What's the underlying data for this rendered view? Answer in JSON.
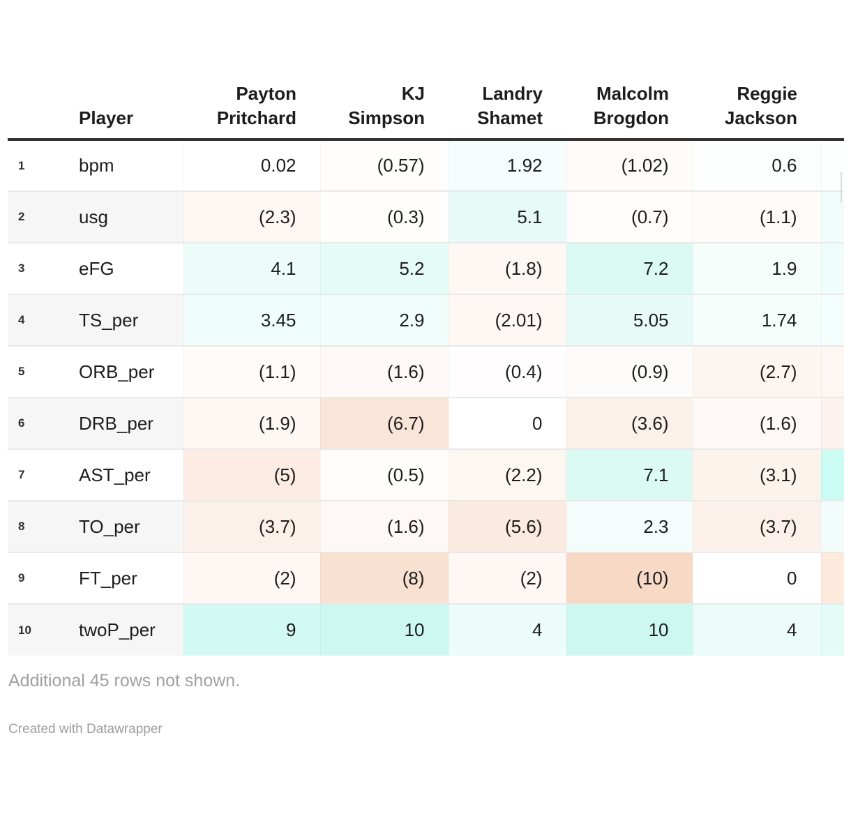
{
  "table": {
    "headers": [
      "",
      "Player",
      "Payton Pritchard",
      "KJ Simpson",
      "Landry Shamet",
      "Malcolm Brogdon",
      "Reggie Jackson"
    ],
    "rows": [
      {
        "num": "1",
        "label": "bpm",
        "cells": [
          "0.02",
          "(0.57)",
          "1.92",
          "(1.02)",
          "0.6"
        ],
        "partial_color": "#fdfffe"
      },
      {
        "num": "2",
        "label": "usg",
        "cells": [
          "(2.3)",
          "(0.3)",
          "5.1",
          "(0.7)",
          "(1.1)"
        ],
        "partial_color": "#f0fdfb"
      },
      {
        "num": "3",
        "label": "eFG",
        "cells": [
          "4.1",
          "5.2",
          "(1.8)",
          "7.2",
          "1.9"
        ],
        "partial_color": "#eefdfa"
      },
      {
        "num": "4",
        "label": "TS_per",
        "cells": [
          "3.45",
          "2.9",
          "(2.01)",
          "5.05",
          "1.74"
        ],
        "partial_color": "#f4fefc"
      },
      {
        "num": "5",
        "label": "ORB_per",
        "cells": [
          "(1.1)",
          "(1.6)",
          "(0.4)",
          "(0.9)",
          "(2.7)"
        ],
        "partial_color": "#fef6f2"
      },
      {
        "num": "6",
        "label": "DRB_per",
        "cells": [
          "(1.9)",
          "(6.7)",
          "0",
          "(3.6)",
          "(1.6)"
        ],
        "partial_color": "#fdf3ee"
      },
      {
        "num": "7",
        "label": "AST_per",
        "cells": [
          "(5)",
          "(0.5)",
          "(2.2)",
          "7.1",
          "(3.1)"
        ],
        "partial_color": "#ccfbf4"
      },
      {
        "num": "8",
        "label": "TO_per",
        "cells": [
          "(3.7)",
          "(1.6)",
          "(5.6)",
          "2.3",
          "(3.7)"
        ],
        "partial_color": "#f2fdfb"
      },
      {
        "num": "9",
        "label": "FT_per",
        "cells": [
          "(2)",
          "(8)",
          "(2)",
          "(10)",
          "0"
        ],
        "partial_color": "#fdeadd"
      },
      {
        "num": "10",
        "label": "twoP_per",
        "cells": [
          "9",
          "10",
          "4",
          "10",
          "4"
        ],
        "partial_color": "#e3fcf8"
      }
    ]
  },
  "footer": {
    "note": "Additional 45 rows not shown.",
    "attribution": "Created with Datawrapper"
  },
  "colors": {
    "positive_max": "#cdf8f0",
    "negative_max": "#f8d9c6",
    "header_rule": "#333333",
    "zebra_row": "#f6f6f6",
    "row_divider": "#e9e9e9",
    "text": "#1d1d1d",
    "muted_text": "#a0a0a0"
  },
  "chart_data": {
    "type": "table",
    "title": "",
    "columns": [
      "Payton Pritchard",
      "KJ Simpson",
      "Landry Shamet",
      "Malcolm Brogdon",
      "Reggie Jackson"
    ],
    "row_labels": [
      "bpm",
      "usg",
      "eFG",
      "TS_per",
      "ORB_per",
      "DRB_per",
      "AST_per",
      "TO_per",
      "FT_per",
      "twoP_per"
    ],
    "values": [
      [
        0.02,
        -0.57,
        1.92,
        -1.02,
        0.6
      ],
      [
        -2.3,
        -0.3,
        5.1,
        -0.7,
        -1.1
      ],
      [
        4.1,
        5.2,
        -1.8,
        7.2,
        1.9
      ],
      [
        3.45,
        2.9,
        -2.01,
        5.05,
        1.74
      ],
      [
        -1.1,
        -1.6,
        -0.4,
        -0.9,
        -2.7
      ],
      [
        -1.9,
        -6.7,
        0,
        -3.6,
        -1.6
      ],
      [
        -5,
        -0.5,
        -2.2,
        7.1,
        -3.1
      ],
      [
        -3.7,
        -1.6,
        -5.6,
        2.3,
        -3.7
      ],
      [
        -2,
        -8,
        -2,
        -10,
        0
      ],
      [
        9,
        10,
        4,
        10,
        4
      ]
    ],
    "value_note": "Negative values are displayed in parentheses; cell background is a diverging heatmap (teal = positive, orange = negative, intensity proportional to |value|/10)",
    "legend_position": "none",
    "grid": "row dividers only",
    "note": "Additional 45 rows not shown."
  }
}
